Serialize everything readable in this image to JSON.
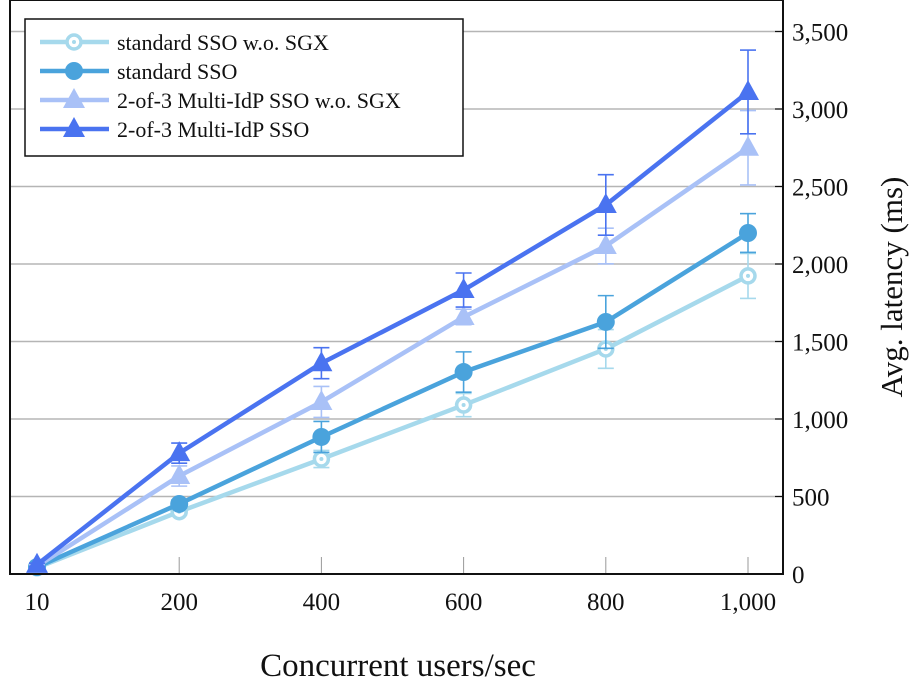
{
  "chart_data": {
    "type": "line",
    "title": "",
    "xlabel": "Concurrent users/sec",
    "ylabel": "Avg. latency (ms)",
    "categories": [
      "10",
      "200",
      "400",
      "600",
      "800",
      "1,000"
    ],
    "ylim": [
      0,
      3500
    ],
    "yticks": [
      0,
      500,
      1000,
      1500,
      2000,
      2500,
      3000,
      3500
    ],
    "ytick_labels": [
      "0",
      "500",
      "1,000",
      "1,500",
      "2,000",
      "2,500",
      "3,000",
      "3,500"
    ],
    "y_axis_position": "right",
    "grid": "horizontal",
    "legend_position": "top-left",
    "series": [
      {
        "name": "standard SSO w.o. SGX",
        "color": "#a6d9ec",
        "marker": "open-circle",
        "values": [
          40,
          402,
          742,
          1090,
          1452,
          1923
        ],
        "errors": [
          10,
          20,
          55,
          75,
          125,
          145
        ]
      },
      {
        "name": "standard SSO",
        "color": "#4aa3dc",
        "marker": "circle",
        "values": [
          45,
          452,
          884,
          1303,
          1626,
          2200
        ],
        "errors": [
          10,
          25,
          100,
          130,
          170,
          125
        ]
      },
      {
        "name": "2-of-3 Multi-IdP SSO w.o. SGX",
        "color": "#a9c1f7",
        "marker": "triangle",
        "values": [
          50,
          632,
          1110,
          1658,
          2116,
          2750
        ],
        "errors": [
          10,
          65,
          100,
          50,
          115,
          240
        ]
      },
      {
        "name": "2-of-3 Multi-IdP SSO",
        "color": "#4a73f0",
        "marker": "triangle",
        "values": [
          60,
          780,
          1360,
          1832,
          2381,
          3110
        ],
        "errors": [
          10,
          65,
          100,
          110,
          195,
          270
        ]
      }
    ]
  }
}
